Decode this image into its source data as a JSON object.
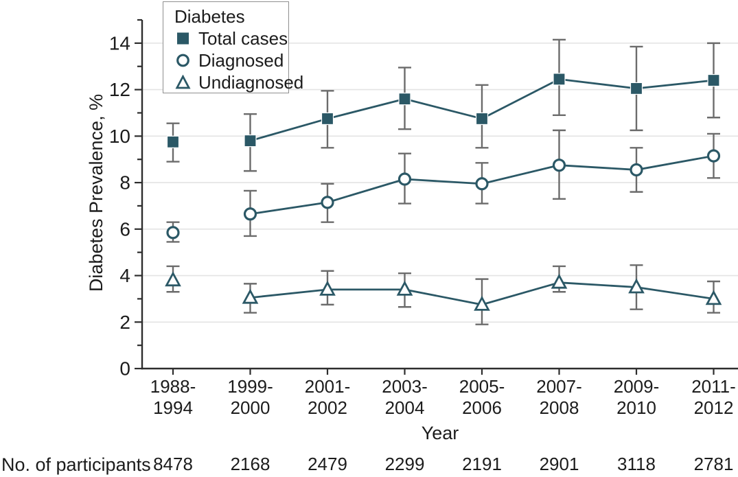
{
  "chart_data": {
    "type": "line",
    "title": "",
    "categories": [
      "1988-1994",
      "1999-2000",
      "2001-2002",
      "2003-2004",
      "2005-2006",
      "2007-2008",
      "2009-2010",
      "2011-2012"
    ],
    "xlabel": "Year",
    "ylabel": "Diabetes Prevalence, %",
    "ylim": [
      0,
      15
    ],
    "y_major_ticks": [
      0,
      2,
      4,
      6,
      8,
      10,
      12,
      14
    ],
    "y_minor_ticks": [
      1,
      3,
      5,
      7,
      9,
      11,
      13,
      15
    ],
    "grid": "horizontal-lines-at-major-ticks",
    "legend": {
      "title": "Diabetes",
      "position": "top-left"
    },
    "connect_from_index": 1,
    "error_bars": "95% CI",
    "series": [
      {
        "name": "Total cases",
        "marker": "filled-square",
        "values": [
          9.75,
          9.8,
          10.75,
          11.6,
          10.75,
          12.45,
          12.05,
          12.4
        ],
        "ci_low": [
          8.9,
          8.5,
          9.5,
          10.3,
          9.5,
          10.9,
          10.25,
          10.8
        ],
        "ci_high": [
          10.55,
          10.95,
          11.95,
          12.95,
          12.2,
          14.15,
          13.85,
          14.0
        ]
      },
      {
        "name": "Diagnosed",
        "marker": "open-circle",
        "values": [
          5.85,
          6.65,
          7.15,
          8.15,
          7.95,
          8.75,
          8.55,
          9.15
        ],
        "ci_low": [
          5.45,
          5.7,
          6.3,
          7.1,
          7.1,
          7.3,
          7.6,
          8.2
        ],
        "ci_high": [
          6.3,
          7.65,
          7.95,
          9.25,
          8.85,
          10.25,
          9.5,
          10.1
        ]
      },
      {
        "name": "Undiagnosed",
        "marker": "open-triangle",
        "values": [
          3.8,
          3.05,
          3.4,
          3.4,
          2.75,
          3.7,
          3.5,
          3.0
        ],
        "ci_low": [
          3.3,
          2.4,
          2.75,
          2.65,
          1.9,
          3.3,
          2.55,
          2.4
        ],
        "ci_high": [
          4.4,
          3.65,
          4.2,
          4.1,
          3.85,
          4.4,
          4.45,
          3.75
        ]
      }
    ]
  },
  "participants": {
    "label": "No. of participants",
    "values": [
      "8478",
      "2168",
      "2479",
      "2299",
      "2191",
      "2901",
      "3118",
      "2781"
    ]
  },
  "colors": {
    "series": "#2b5866",
    "error_bar": "#6b6b6b",
    "grid": "#e3e3e3",
    "axis": "#2d2d2d",
    "text": "#1c1c1c",
    "legend_border": "#8e8e8e",
    "background": "#ffffff"
  }
}
